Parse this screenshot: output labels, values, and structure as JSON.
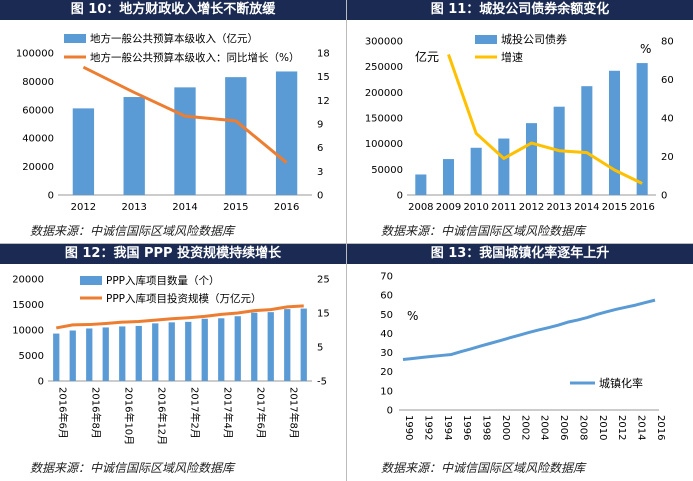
{
  "source_text": "数据来源：中诚信国际区域风险数据库",
  "chart_data": [
    {
      "type": "bar+line",
      "title": "图 10：地方财政收入增长不断放缓",
      "categories": [
        "2012",
        "2013",
        "2014",
        "2015",
        "2016"
      ],
      "series": [
        {
          "name": "地方一般公共预算本级收入（亿元）",
          "type": "bar",
          "axis": "left",
          "color": "#5b9bd5",
          "values": [
            61000,
            69000,
            75800,
            83000,
            87000
          ]
        },
        {
          "name": "地方一般公共预算本级收入：同比增长（%）",
          "type": "line",
          "axis": "right",
          "color": "#ed7d31",
          "values": [
            16.2,
            13.0,
            10.0,
            9.4,
            4.1
          ]
        }
      ],
      "yleft": {
        "min": 0,
        "max": 100000,
        "ticks": [
          0,
          20000,
          40000,
          60000,
          80000,
          100000
        ]
      },
      "yright": {
        "min": 0,
        "max": 18,
        "ticks": [
          0,
          3,
          6,
          9,
          12,
          15,
          18
        ]
      },
      "legend": "top-left"
    },
    {
      "type": "bar+line",
      "title": "图 11：城投公司债券余额变化",
      "categories": [
        "2008",
        "2009",
        "2010",
        "2011",
        "2012",
        "2013",
        "2014",
        "2015",
        "2016"
      ],
      "left_unit": "亿元",
      "right_unit": "%",
      "series": [
        {
          "name": "城投公司债券",
          "type": "bar",
          "axis": "left",
          "color": "#5b9bd5",
          "values": [
            40000,
            70000,
            92000,
            110000,
            140000,
            172000,
            212000,
            242000,
            257000
          ]
        },
        {
          "name": "增速",
          "type": "line",
          "axis": "right",
          "color": "#ffc000",
          "values": [
            null,
            73,
            32,
            19,
            27,
            23,
            22,
            13,
            6
          ]
        }
      ],
      "yleft": {
        "min": 0,
        "max": 300000,
        "ticks": [
          0,
          50000,
          100000,
          150000,
          200000,
          250000,
          300000
        ]
      },
      "yright": {
        "min": 0,
        "max": 80,
        "ticks": [
          0,
          20,
          40,
          60,
          80
        ]
      },
      "legend": "top-center"
    },
    {
      "type": "bar+line",
      "title": "图 12：我国 PPP 投资规模持续增长",
      "categories": [
        "2016年6月",
        "2016年7月",
        "2016年8月",
        "2016年9月",
        "2016年10月",
        "2016年11月",
        "2016年12月",
        "2017年1月",
        "2017年2月",
        "2017年3月",
        "2017年4月",
        "2017年5月",
        "2017年6月",
        "2017年7月",
        "2017年8月",
        "2017年9月"
      ],
      "xlabels": [
        "2016年6月",
        "2016年8月",
        "2016年10月",
        "2016年12月",
        "2017年2月",
        "2017年4月",
        "2017年6月",
        "2017年8月"
      ],
      "series": [
        {
          "name": "PPP入库项目数量（个）",
          "type": "bar",
          "axis": "left",
          "color": "#5b9bd5",
          "values": [
            9300,
            9900,
            10300,
            10500,
            10700,
            10800,
            11300,
            11500,
            11600,
            12200,
            12300,
            12700,
            13400,
            13500,
            14100,
            14200
          ]
        },
        {
          "name": "PPP入库项目投资规模（万亿元）",
          "type": "line",
          "axis": "right",
          "color": "#ed7d31",
          "values": [
            10.6,
            11.5,
            11.6,
            11.9,
            12.3,
            12.5,
            12.9,
            13.3,
            13.6,
            14.0,
            14.6,
            15.0,
            15.7,
            16.0,
            16.8,
            17.1
          ]
        }
      ],
      "yleft": {
        "min": 0,
        "max": 20000,
        "ticks": [
          0,
          5000,
          10000,
          15000,
          20000
        ]
      },
      "yright": {
        "min": -5,
        "max": 25,
        "ticks": [
          -5,
          5,
          15,
          25
        ]
      },
      "legend": "top-left"
    },
    {
      "type": "line",
      "title": "图 13：我国城镇化率逐年上升",
      "unit": "%",
      "x": [
        1990,
        1991,
        1992,
        1993,
        1994,
        1995,
        1996,
        1997,
        1998,
        1999,
        2000,
        2001,
        2002,
        2003,
        2004,
        2005,
        2006,
        2007,
        2008,
        2009,
        2010,
        2011,
        2012,
        2013,
        2014,
        2015,
        2016
      ],
      "xticks": [
        "1990",
        "1992",
        "1994",
        "1996",
        "1998",
        "2000",
        "2002",
        "2004",
        "2006",
        "2008",
        "2010",
        "2012",
        "2014",
        "2016"
      ],
      "series": [
        {
          "name": "城镇化率",
          "color": "#5b9bd5",
          "values": [
            26.4,
            26.9,
            27.5,
            28.0,
            28.5,
            29.0,
            30.5,
            31.9,
            33.4,
            34.8,
            36.2,
            37.7,
            39.1,
            40.5,
            41.8,
            43.0,
            44.3,
            45.9,
            47.0,
            48.3,
            49.9,
            51.3,
            52.6,
            53.7,
            54.8,
            56.1,
            57.4
          ]
        }
      ],
      "yleft": {
        "min": 0,
        "max": 70,
        "ticks": [
          0,
          10,
          20,
          30,
          40,
          50,
          60,
          70
        ]
      },
      "legend": "bottom-right"
    }
  ]
}
